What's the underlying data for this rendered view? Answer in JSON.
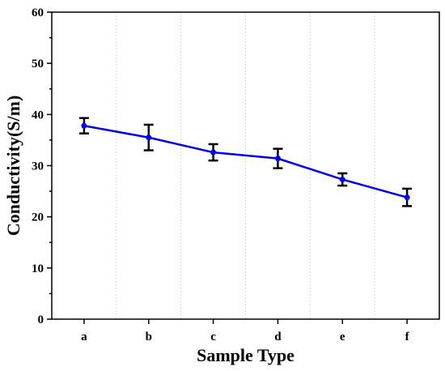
{
  "chart_data": {
    "type": "line",
    "title": "",
    "xlabel": "Sample Type",
    "ylabel": "Conductivity(S/m)",
    "categories": [
      "a",
      "b",
      "c",
      "d",
      "e",
      "f"
    ],
    "series": [
      {
        "values": [
          37.8,
          35.5,
          32.6,
          31.4,
          27.3,
          23.8
        ],
        "errors": [
          1.5,
          2.5,
          1.6,
          1.9,
          1.2,
          1.7
        ],
        "color": "#0000e6"
      }
    ],
    "ylim": [
      0,
      60
    ],
    "yticks": [
      0,
      10,
      20,
      30,
      40,
      50,
      60
    ],
    "ytick_labels": [
      "0",
      "10",
      "20",
      "30",
      "40",
      "50",
      "60"
    ],
    "grid": "vertical-dotted",
    "legend": "none"
  }
}
